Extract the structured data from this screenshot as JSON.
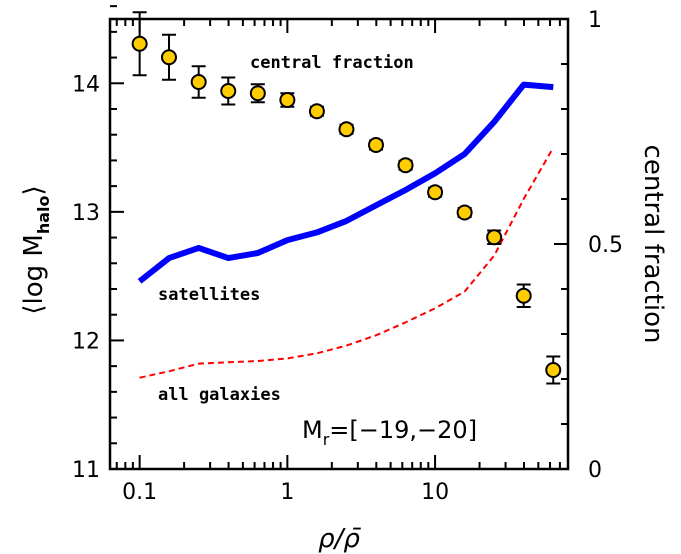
{
  "chart_data": {
    "type": "line",
    "xscale": "log",
    "xlim": [
      0.063,
      79.4
    ],
    "ylim": [
      11,
      14.5
    ],
    "y2lim": [
      0,
      1
    ],
    "xlabel": "ρ/ρ̄",
    "ylabel": "⟨log M",
    "ylabel_sub": "halo",
    "ylabel_close": "⟩",
    "y2label": "central fraction",
    "x_ticks": [
      {
        "value": 0.1,
        "label": "0.1"
      },
      {
        "value": 1,
        "label": "1"
      },
      {
        "value": 10,
        "label": "10"
      }
    ],
    "y_ticks": [
      {
        "value": 11,
        "label": "11"
      },
      {
        "value": 12,
        "label": "12"
      },
      {
        "value": 13,
        "label": "13"
      },
      {
        "value": 14,
        "label": "14"
      }
    ],
    "y2_ticks": [
      {
        "value": 0,
        "label": "0"
      },
      {
        "value": 0.5,
        "label": "0.5"
      },
      {
        "value": 1,
        "label": "1"
      }
    ],
    "annotations": {
      "central": "central fraction",
      "satellites": "satellites",
      "all": "all galaxies",
      "mr_prefix": "M",
      "mr_sub": "r",
      "mr_value": "=[−19,−20]"
    },
    "series": [
      {
        "color": "#0000ff",
        "style": "solid",
        "axis": "left",
        "x": [
          0.1,
          0.158,
          0.251,
          0.398,
          0.631,
          1.0,
          1.585,
          2.512,
          3.981,
          6.31,
          10.0,
          15.85,
          25.12,
          39.81,
          63.1
        ],
        "y": [
          12.46,
          12.64,
          12.72,
          12.64,
          12.68,
          12.78,
          12.84,
          12.93,
          13.05,
          13.17,
          13.3,
          13.45,
          13.7,
          13.99,
          13.97
        ]
      },
      {
        "color": "#ff0000",
        "style": "dashed",
        "axis": "left",
        "x": [
          0.1,
          0.158,
          0.251,
          0.398,
          0.631,
          1.0,
          1.585,
          2.512,
          3.981,
          6.31,
          10.0,
          15.85,
          25.12,
          39.81,
          63.1
        ],
        "y": [
          11.71,
          11.76,
          11.82,
          11.83,
          11.84,
          11.86,
          11.9,
          11.96,
          12.04,
          12.14,
          12.25,
          12.38,
          12.66,
          13.1,
          13.5
        ]
      },
      {
        "color": "#ffcc00",
        "style": "points",
        "axis": "right",
        "x": [
          0.1,
          0.158,
          0.251,
          0.398,
          0.631,
          1.0,
          1.585,
          2.512,
          3.981,
          6.31,
          10.0,
          15.85,
          25.12,
          39.81,
          63.1
        ],
        "y": [
          0.945,
          0.915,
          0.86,
          0.84,
          0.835,
          0.82,
          0.795,
          0.755,
          0.72,
          0.675,
          0.615,
          0.57,
          0.515,
          0.385,
          0.22
        ],
        "yerr": [
          0.07,
          0.05,
          0.035,
          0.03,
          0.02,
          0.015,
          0.01,
          0.01,
          0.01,
          0.01,
          0.01,
          0.01,
          0.015,
          0.025,
          0.03
        ]
      }
    ]
  }
}
